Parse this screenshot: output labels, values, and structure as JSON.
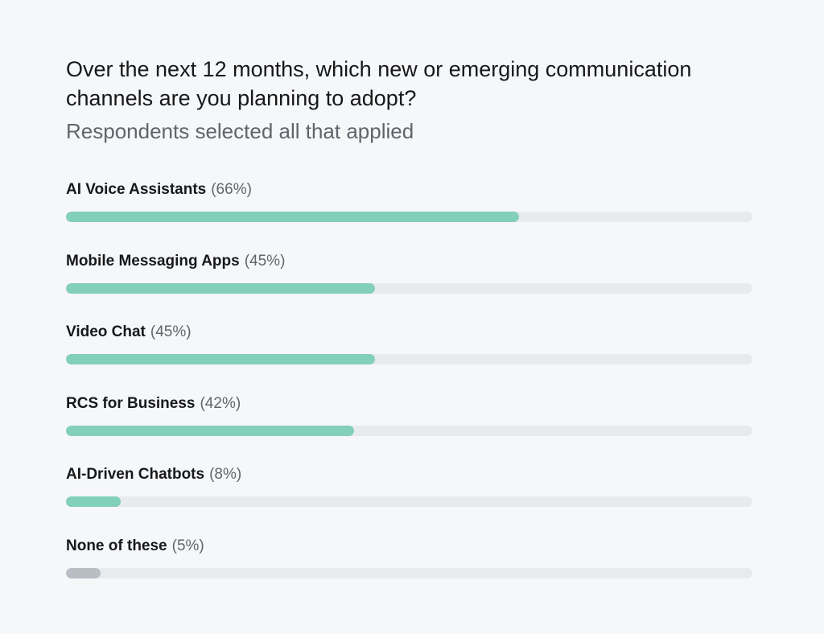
{
  "header": {
    "title": "Over the next 12 months, which new or emerging communication channels are you planning to adopt?",
    "subtitle": "Respondents selected all that applied"
  },
  "chart_data": {
    "type": "bar",
    "orientation": "horizontal",
    "title": "Over the next 12 months, which new or emerging communication channels are you planning to adopt?",
    "subtitle": "Respondents selected all that applied",
    "xlim": [
      0,
      100
    ],
    "unit": "%",
    "grid": false,
    "categories": [
      "AI Voice Assistants",
      "Mobile Messaging Apps",
      "Video Chat",
      "RCS for Business",
      "AI-Driven Chatbots",
      "None of these"
    ],
    "values": [
      66,
      45,
      45,
      42,
      8,
      5
    ],
    "value_labels": [
      "(66%)",
      "(45%)",
      "(45%)",
      "(42%)",
      "(8%)",
      "(5%)"
    ],
    "bar_colors": [
      "#82cfba",
      "#82cfba",
      "#82cfba",
      "#82cfba",
      "#82cfba",
      "#b9bec4"
    ],
    "track_color": "#e8ebee"
  }
}
